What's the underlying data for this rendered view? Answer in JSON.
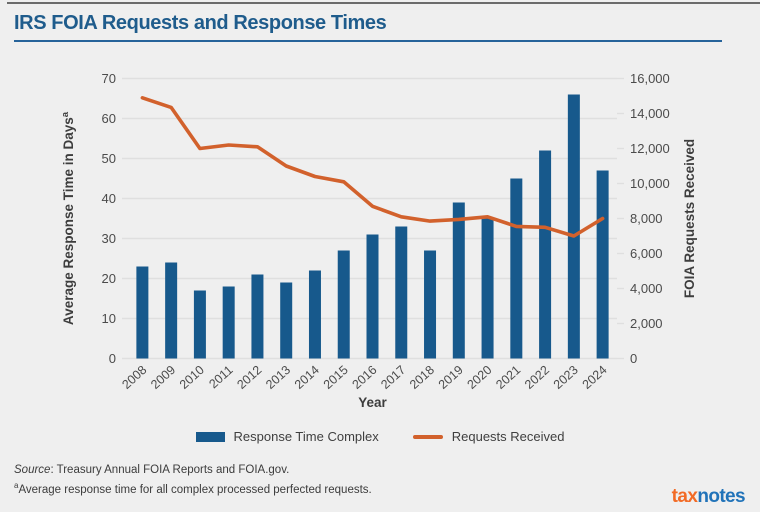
{
  "header": {
    "title": "IRS FOIA Requests and Response Times"
  },
  "chart_data": {
    "type": "bar",
    "title": "IRS FOIA Requests and Response Times",
    "x": [
      2008,
      2009,
      2010,
      2011,
      2012,
      2013,
      2014,
      2015,
      2016,
      2017,
      2018,
      2019,
      2020,
      2021,
      2022,
      2023,
      2024
    ],
    "series": [
      {
        "name": "Response Time Complex",
        "type": "bar",
        "axis": "left",
        "values": [
          23,
          24,
          17,
          18,
          21,
          19,
          22,
          27,
          31,
          33,
          27,
          39,
          35,
          45,
          52,
          66,
          47
        ]
      },
      {
        "name": "Requests Received",
        "type": "line",
        "axis": "right",
        "values": [
          14900,
          14350,
          12000,
          12200,
          12100,
          11000,
          10400,
          10100,
          8700,
          8100,
          7850,
          7950,
          8100,
          7550,
          7500,
          7000,
          8000
        ]
      }
    ],
    "x_axis": {
      "label": "Year"
    },
    "left_axis": {
      "label": "Average Response Time in Days",
      "label_superscript": "a",
      "ticks": [
        0,
        10,
        20,
        30,
        40,
        50,
        60,
        70
      ],
      "range": [
        0,
        70
      ]
    },
    "right_axis": {
      "label": "FOIA Requests Received",
      "tick_labels": [
        "0",
        "2,000",
        "4,000",
        "6,000",
        "8,000",
        "10,000",
        "12,000",
        "14,000",
        "16,000"
      ],
      "tick_values": [
        0,
        2000,
        4000,
        6000,
        8000,
        10000,
        12000,
        14000,
        16000
      ],
      "range": [
        0,
        16000
      ]
    },
    "colors": {
      "bar": "#17598c",
      "line": "#d2612c",
      "grid": "#dfdfdf",
      "tick_text": "#4b4b4b",
      "axis_label_text": "#3d3d3d"
    },
    "grid": true,
    "legend_position": "bottom"
  },
  "footer": {
    "source_word": "Source",
    "source_rest": ": Treasury Annual FOIA Reports and FOIA.gov.",
    "footnote_sup": "a",
    "footnote_text": "Average response time for all complex processed perfected requests.",
    "logo": {
      "part1": "tax",
      "part2": "notes"
    }
  }
}
